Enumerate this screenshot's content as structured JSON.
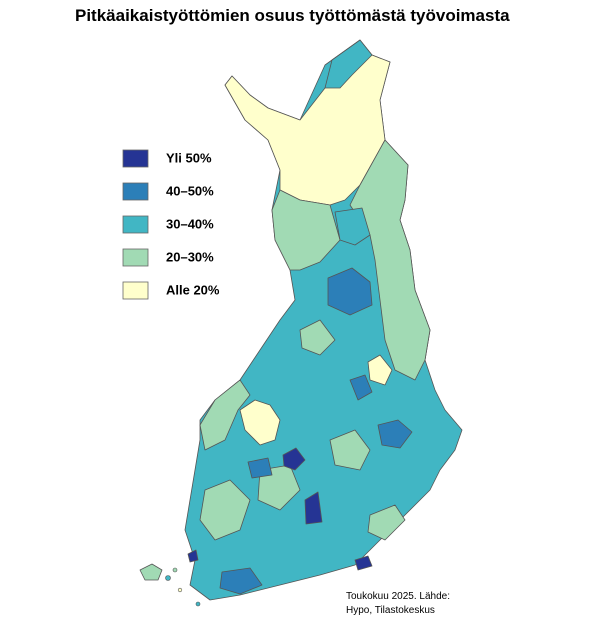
{
  "map": {
    "title": "Pitkäaikaistyöttömien osuus työttömästä työvoimasta",
    "legend": [
      {
        "label": "Yli 50%",
        "color": "#253494"
      },
      {
        "label": "40–50%",
        "color": "#2c7fb8"
      },
      {
        "label": "30–40%",
        "color": "#41b6c4"
      },
      {
        "label": "20–30%",
        "color": "#a1dab4"
      },
      {
        "label": "Alle 20%",
        "color": "#ffffcc"
      }
    ],
    "source": [
      "Toukokuu 2025. Lähde:",
      "Hypo, Tilastokeskus"
    ]
  }
}
